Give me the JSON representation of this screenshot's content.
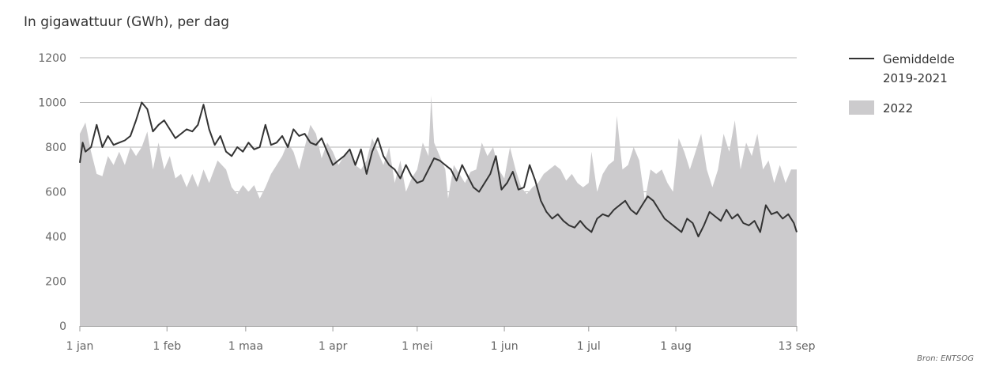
{
  "chart_data": {
    "type": "area",
    "title": "In gigawattuur (GWh), per dag",
    "source": "Bron: ENTSOG",
    "xlabel": "",
    "ylabel": "",
    "ylim": [
      0,
      1200
    ],
    "yticks": [
      0,
      200,
      400,
      600,
      800,
      1000,
      1200
    ],
    "grid": true,
    "legend_position": "right",
    "x_start": "2022-01-01",
    "x_end": "2022-09-13",
    "xtick_labels": [
      "1 jan",
      "1 feb",
      "1 maa",
      "1 apr",
      "1 mei",
      "1 jun",
      "1 jul",
      "1 aug",
      "13 sep"
    ],
    "xtick_dates": [
      "2022-01-01",
      "2022-02-01",
      "2022-03-01",
      "2022-04-01",
      "2022-05-01",
      "2022-06-01",
      "2022-07-01",
      "2022-08-01",
      "2022-09-13"
    ],
    "series": [
      {
        "name": "2022",
        "kind": "area",
        "color": "#cccbcd",
        "points": [
          [
            "2022-01-01",
            860
          ],
          [
            "2022-01-03",
            910
          ],
          [
            "2022-01-05",
            780
          ],
          [
            "2022-01-07",
            680
          ],
          [
            "2022-01-09",
            670
          ],
          [
            "2022-01-11",
            760
          ],
          [
            "2022-01-13",
            720
          ],
          [
            "2022-01-15",
            780
          ],
          [
            "2022-01-17",
            720
          ],
          [
            "2022-01-19",
            800
          ],
          [
            "2022-01-21",
            760
          ],
          [
            "2022-01-23",
            800
          ],
          [
            "2022-01-25",
            870
          ],
          [
            "2022-01-27",
            700
          ],
          [
            "2022-01-29",
            820
          ],
          [
            "2022-01-31",
            700
          ],
          [
            "2022-02-02",
            760
          ],
          [
            "2022-02-04",
            660
          ],
          [
            "2022-02-06",
            680
          ],
          [
            "2022-02-08",
            620
          ],
          [
            "2022-02-10",
            680
          ],
          [
            "2022-02-12",
            620
          ],
          [
            "2022-02-14",
            700
          ],
          [
            "2022-02-16",
            640
          ],
          [
            "2022-02-19",
            740
          ],
          [
            "2022-02-22",
            700
          ],
          [
            "2022-02-24",
            620
          ],
          [
            "2022-02-26",
            590
          ],
          [
            "2022-02-28",
            630
          ],
          [
            "2022-03-02",
            600
          ],
          [
            "2022-03-04",
            630
          ],
          [
            "2022-03-06",
            570
          ],
          [
            "2022-03-08",
            620
          ],
          [
            "2022-03-10",
            680
          ],
          [
            "2022-03-12",
            720
          ],
          [
            "2022-03-14",
            760
          ],
          [
            "2022-03-16",
            820
          ],
          [
            "2022-03-18",
            780
          ],
          [
            "2022-03-20",
            700
          ],
          [
            "2022-03-22",
            800
          ],
          [
            "2022-03-24",
            900
          ],
          [
            "2022-03-26",
            860
          ],
          [
            "2022-03-28",
            750
          ],
          [
            "2022-03-30",
            820
          ],
          [
            "2022-04-01",
            780
          ],
          [
            "2022-04-03",
            720
          ],
          [
            "2022-04-05",
            760
          ],
          [
            "2022-04-07",
            780
          ],
          [
            "2022-04-09",
            720
          ],
          [
            "2022-04-11",
            700
          ],
          [
            "2022-04-13",
            740
          ],
          [
            "2022-04-15",
            840
          ],
          [
            "2022-04-17",
            780
          ],
          [
            "2022-04-19",
            720
          ],
          [
            "2022-04-21",
            800
          ],
          [
            "2022-04-23",
            640
          ],
          [
            "2022-04-25",
            740
          ],
          [
            "2022-04-27",
            600
          ],
          [
            "2022-04-29",
            660
          ],
          [
            "2022-05-01",
            700
          ],
          [
            "2022-05-03",
            820
          ],
          [
            "2022-05-05",
            760
          ],
          [
            "2022-05-06",
            1030
          ],
          [
            "2022-05-07",
            820
          ],
          [
            "2022-05-09",
            760
          ],
          [
            "2022-05-11",
            700
          ],
          [
            "2022-05-12",
            570
          ],
          [
            "2022-05-14",
            720
          ],
          [
            "2022-05-16",
            680
          ],
          [
            "2022-05-18",
            640
          ],
          [
            "2022-05-20",
            690
          ],
          [
            "2022-05-22",
            700
          ],
          [
            "2022-05-24",
            820
          ],
          [
            "2022-05-26",
            760
          ],
          [
            "2022-05-28",
            800
          ],
          [
            "2022-05-30",
            700
          ],
          [
            "2022-06-01",
            660
          ],
          [
            "2022-06-03",
            800
          ],
          [
            "2022-06-05",
            700
          ],
          [
            "2022-06-07",
            620
          ],
          [
            "2022-06-09",
            590
          ],
          [
            "2022-06-11",
            620
          ],
          [
            "2022-06-13",
            640
          ],
          [
            "2022-06-15",
            680
          ],
          [
            "2022-06-17",
            700
          ],
          [
            "2022-06-19",
            720
          ],
          [
            "2022-06-21",
            700
          ],
          [
            "2022-06-23",
            650
          ],
          [
            "2022-06-25",
            680
          ],
          [
            "2022-06-27",
            640
          ],
          [
            "2022-06-29",
            620
          ],
          [
            "2022-07-01",
            640
          ],
          [
            "2022-07-02",
            780
          ],
          [
            "2022-07-04",
            600
          ],
          [
            "2022-07-06",
            680
          ],
          [
            "2022-07-08",
            720
          ],
          [
            "2022-07-10",
            740
          ],
          [
            "2022-07-11",
            940
          ],
          [
            "2022-07-13",
            700
          ],
          [
            "2022-07-15",
            720
          ],
          [
            "2022-07-17",
            800
          ],
          [
            "2022-07-19",
            740
          ],
          [
            "2022-07-21",
            560
          ],
          [
            "2022-07-23",
            700
          ],
          [
            "2022-07-25",
            680
          ],
          [
            "2022-07-27",
            700
          ],
          [
            "2022-07-29",
            640
          ],
          [
            "2022-07-31",
            600
          ],
          [
            "2022-08-02",
            840
          ],
          [
            "2022-08-04",
            780
          ],
          [
            "2022-08-06",
            700
          ],
          [
            "2022-08-08",
            780
          ],
          [
            "2022-08-10",
            860
          ],
          [
            "2022-08-12",
            700
          ],
          [
            "2022-08-14",
            620
          ],
          [
            "2022-08-16",
            700
          ],
          [
            "2022-08-18",
            860
          ],
          [
            "2022-08-20",
            780
          ],
          [
            "2022-08-22",
            920
          ],
          [
            "2022-08-24",
            700
          ],
          [
            "2022-08-26",
            820
          ],
          [
            "2022-08-28",
            760
          ],
          [
            "2022-08-30",
            860
          ],
          [
            "2022-09-01",
            700
          ],
          [
            "2022-09-03",
            740
          ],
          [
            "2022-09-05",
            640
          ],
          [
            "2022-09-07",
            720
          ],
          [
            "2022-09-09",
            640
          ],
          [
            "2022-09-11",
            700
          ],
          [
            "2022-09-13",
            700
          ]
        ]
      },
      {
        "name": "Gemiddelde 2019-2021",
        "kind": "line",
        "color": "#333333",
        "points": [
          [
            "2022-01-01",
            730
          ],
          [
            "2022-01-02",
            820
          ],
          [
            "2022-01-03",
            780
          ],
          [
            "2022-01-05",
            800
          ],
          [
            "2022-01-07",
            900
          ],
          [
            "2022-01-09",
            800
          ],
          [
            "2022-01-11",
            850
          ],
          [
            "2022-01-13",
            810
          ],
          [
            "2022-01-15",
            820
          ],
          [
            "2022-01-17",
            830
          ],
          [
            "2022-01-19",
            850
          ],
          [
            "2022-01-21",
            920
          ],
          [
            "2022-01-23",
            1000
          ],
          [
            "2022-01-25",
            970
          ],
          [
            "2022-01-27",
            870
          ],
          [
            "2022-01-29",
            900
          ],
          [
            "2022-01-31",
            920
          ],
          [
            "2022-02-02",
            880
          ],
          [
            "2022-02-04",
            840
          ],
          [
            "2022-02-06",
            860
          ],
          [
            "2022-02-08",
            880
          ],
          [
            "2022-02-10",
            870
          ],
          [
            "2022-02-12",
            900
          ],
          [
            "2022-02-14",
            990
          ],
          [
            "2022-02-16",
            880
          ],
          [
            "2022-02-18",
            810
          ],
          [
            "2022-02-20",
            850
          ],
          [
            "2022-02-22",
            780
          ],
          [
            "2022-02-24",
            760
          ],
          [
            "2022-02-26",
            800
          ],
          [
            "2022-02-28",
            780
          ],
          [
            "2022-03-02",
            820
          ],
          [
            "2022-03-04",
            790
          ],
          [
            "2022-03-06",
            800
          ],
          [
            "2022-03-08",
            900
          ],
          [
            "2022-03-10",
            810
          ],
          [
            "2022-03-12",
            820
          ],
          [
            "2022-03-14",
            850
          ],
          [
            "2022-03-16",
            800
          ],
          [
            "2022-03-18",
            880
          ],
          [
            "2022-03-20",
            850
          ],
          [
            "2022-03-22",
            860
          ],
          [
            "2022-03-24",
            820
          ],
          [
            "2022-03-26",
            810
          ],
          [
            "2022-03-28",
            840
          ],
          [
            "2022-03-30",
            780
          ],
          [
            "2022-04-01",
            720
          ],
          [
            "2022-04-03",
            740
          ],
          [
            "2022-04-05",
            760
          ],
          [
            "2022-04-07",
            790
          ],
          [
            "2022-04-09",
            720
          ],
          [
            "2022-04-11",
            790
          ],
          [
            "2022-04-13",
            680
          ],
          [
            "2022-04-15",
            780
          ],
          [
            "2022-04-17",
            840
          ],
          [
            "2022-04-19",
            760
          ],
          [
            "2022-04-21",
            720
          ],
          [
            "2022-04-23",
            700
          ],
          [
            "2022-04-25",
            660
          ],
          [
            "2022-04-27",
            720
          ],
          [
            "2022-04-29",
            670
          ],
          [
            "2022-05-01",
            640
          ],
          [
            "2022-05-03",
            650
          ],
          [
            "2022-05-05",
            700
          ],
          [
            "2022-05-07",
            750
          ],
          [
            "2022-05-09",
            740
          ],
          [
            "2022-05-11",
            720
          ],
          [
            "2022-05-13",
            700
          ],
          [
            "2022-05-15",
            650
          ],
          [
            "2022-05-17",
            720
          ],
          [
            "2022-05-19",
            670
          ],
          [
            "2022-05-21",
            620
          ],
          [
            "2022-05-23",
            600
          ],
          [
            "2022-05-25",
            640
          ],
          [
            "2022-05-27",
            680
          ],
          [
            "2022-05-29",
            760
          ],
          [
            "2022-05-31",
            610
          ],
          [
            "2022-06-02",
            640
          ],
          [
            "2022-06-04",
            690
          ],
          [
            "2022-06-06",
            610
          ],
          [
            "2022-06-08",
            620
          ],
          [
            "2022-06-10",
            720
          ],
          [
            "2022-06-12",
            650
          ],
          [
            "2022-06-14",
            560
          ],
          [
            "2022-06-16",
            510
          ],
          [
            "2022-06-18",
            480
          ],
          [
            "2022-06-20",
            500
          ],
          [
            "2022-06-22",
            470
          ],
          [
            "2022-06-24",
            450
          ],
          [
            "2022-06-26",
            440
          ],
          [
            "2022-06-28",
            470
          ],
          [
            "2022-06-30",
            440
          ],
          [
            "2022-07-02",
            420
          ],
          [
            "2022-07-04",
            480
          ],
          [
            "2022-07-06",
            500
          ],
          [
            "2022-07-08",
            490
          ],
          [
            "2022-07-10",
            520
          ],
          [
            "2022-07-12",
            540
          ],
          [
            "2022-07-14",
            560
          ],
          [
            "2022-07-16",
            520
          ],
          [
            "2022-07-18",
            500
          ],
          [
            "2022-07-20",
            540
          ],
          [
            "2022-07-22",
            580
          ],
          [
            "2022-07-24",
            560
          ],
          [
            "2022-07-26",
            520
          ],
          [
            "2022-07-28",
            480
          ],
          [
            "2022-07-30",
            460
          ],
          [
            "2022-08-01",
            440
          ],
          [
            "2022-08-03",
            420
          ],
          [
            "2022-08-05",
            480
          ],
          [
            "2022-08-07",
            460
          ],
          [
            "2022-08-09",
            400
          ],
          [
            "2022-08-11",
            450
          ],
          [
            "2022-08-13",
            510
          ],
          [
            "2022-08-15",
            490
          ],
          [
            "2022-08-17",
            470
          ],
          [
            "2022-08-19",
            520
          ],
          [
            "2022-08-21",
            480
          ],
          [
            "2022-08-23",
            500
          ],
          [
            "2022-08-25",
            460
          ],
          [
            "2022-08-27",
            450
          ],
          [
            "2022-08-29",
            470
          ],
          [
            "2022-08-31",
            420
          ],
          [
            "2022-09-02",
            540
          ],
          [
            "2022-09-04",
            500
          ],
          [
            "2022-09-06",
            510
          ],
          [
            "2022-09-08",
            480
          ],
          [
            "2022-09-10",
            500
          ],
          [
            "2022-09-12",
            460
          ],
          [
            "2022-09-13",
            420
          ]
        ]
      }
    ],
    "legend": {
      "line_label_1": "Gemiddelde",
      "line_label_2": "2019-2021",
      "area_label": "2022"
    }
  }
}
